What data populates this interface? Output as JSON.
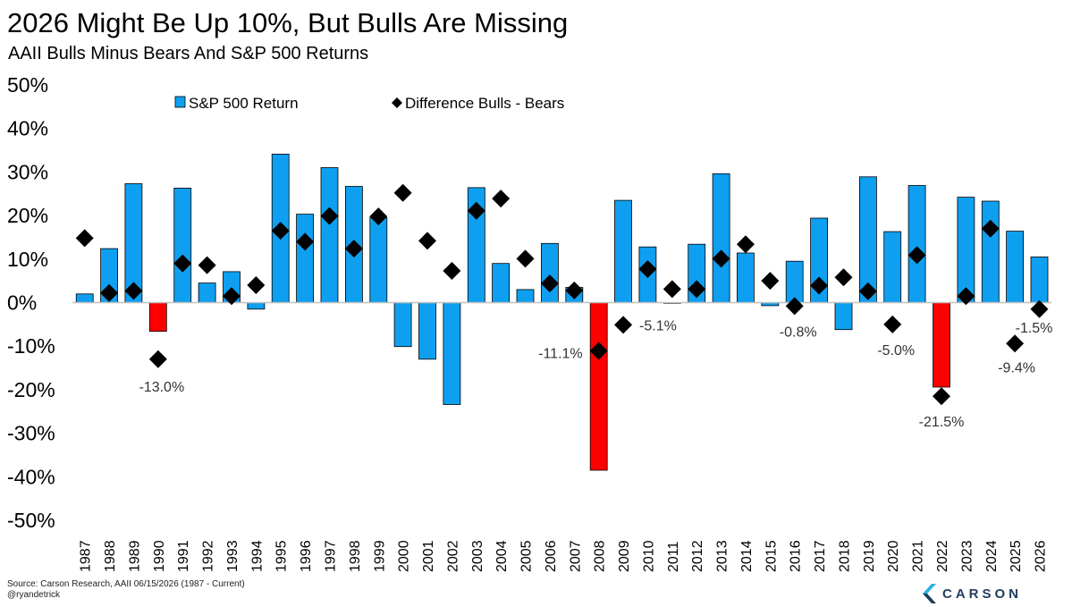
{
  "title": "2026 Might Be Up 10%, But Bulls Are Missing",
  "subtitle": "AAII Bulls Minus Bears And S&P 500 Returns",
  "footer": {
    "source": "Source: Carson Research, AAII 06/15/2026 (1987 - Current)",
    "handle": "@ryandetrick",
    "logo_text": "CARSON"
  },
  "colors": {
    "bar_positive": "#0f9ff0",
    "bar_negative": "#ff0000",
    "bar_outline": "#000000",
    "marker": "#000000",
    "zero_line": "#bfbfbf",
    "logo_light": "#2ab0e5",
    "logo_dark": "#1f3d5c"
  },
  "chart_data": {
    "type": "bar",
    "categories": [
      "1987",
      "1988",
      "1989",
      "1990",
      "1991",
      "1992",
      "1993",
      "1994",
      "1995",
      "1996",
      "1997",
      "1998",
      "1999",
      "2000",
      "2001",
      "2002",
      "2003",
      "2004",
      "2005",
      "2006",
      "2007",
      "2008",
      "2009",
      "2010",
      "2011",
      "2012",
      "2013",
      "2014",
      "2015",
      "2016",
      "2017",
      "2018",
      "2019",
      "2020",
      "2021",
      "2022",
      "2023",
      "2024",
      "2025",
      "2026"
    ],
    "series": [
      {
        "name": "S&P 500 Return",
        "kind": "bar",
        "values": [
          2.0,
          12.4,
          27.3,
          -6.6,
          26.3,
          4.5,
          7.1,
          -1.5,
          34.1,
          20.3,
          31.0,
          26.7,
          19.5,
          -10.1,
          -13.0,
          -23.4,
          26.4,
          9.0,
          3.0,
          13.6,
          3.5,
          -38.5,
          23.5,
          12.8,
          0.0,
          13.4,
          29.6,
          11.4,
          -0.7,
          9.5,
          19.4,
          -6.2,
          28.9,
          16.3,
          26.9,
          -19.4,
          24.2,
          23.3,
          16.4,
          10.5
        ]
      },
      {
        "name": "Difference Bulls - Bears",
        "kind": "marker",
        "values": [
          14.8,
          2.2,
          2.7,
          -13.0,
          9.0,
          8.6,
          1.5,
          4.0,
          16.5,
          14.0,
          19.9,
          12.4,
          19.8,
          25.2,
          14.2,
          7.3,
          21.1,
          23.9,
          10.1,
          4.4,
          2.8,
          -11.1,
          -5.1,
          7.7,
          3.1,
          3.1,
          10.1,
          13.4,
          5.0,
          -0.8,
          3.9,
          5.8,
          2.6,
          -5.0,
          10.9,
          -21.5,
          1.5,
          17.0,
          -9.4,
          -1.5
        ]
      }
    ],
    "annotations": [
      {
        "category": "1990",
        "text": "-13.0%"
      },
      {
        "category": "2008",
        "text": "-11.1%"
      },
      {
        "category": "2009",
        "text": "-5.1%"
      },
      {
        "category": "2016",
        "text": "-0.8%"
      },
      {
        "category": "2020",
        "text": "-5.0%"
      },
      {
        "category": "2022",
        "text": "-21.5%"
      },
      {
        "category": "2025",
        "text": "-9.4%"
      },
      {
        "category": "2026",
        "text": "-1.5%"
      }
    ],
    "yticks": [
      "50%",
      "40%",
      "30%",
      "20%",
      "10%",
      "0%",
      "-10%",
      "-20%",
      "-30%",
      "-40%",
      "-50%"
    ],
    "ylim": [
      -50,
      50
    ],
    "legend_position": "top",
    "grid": false
  }
}
